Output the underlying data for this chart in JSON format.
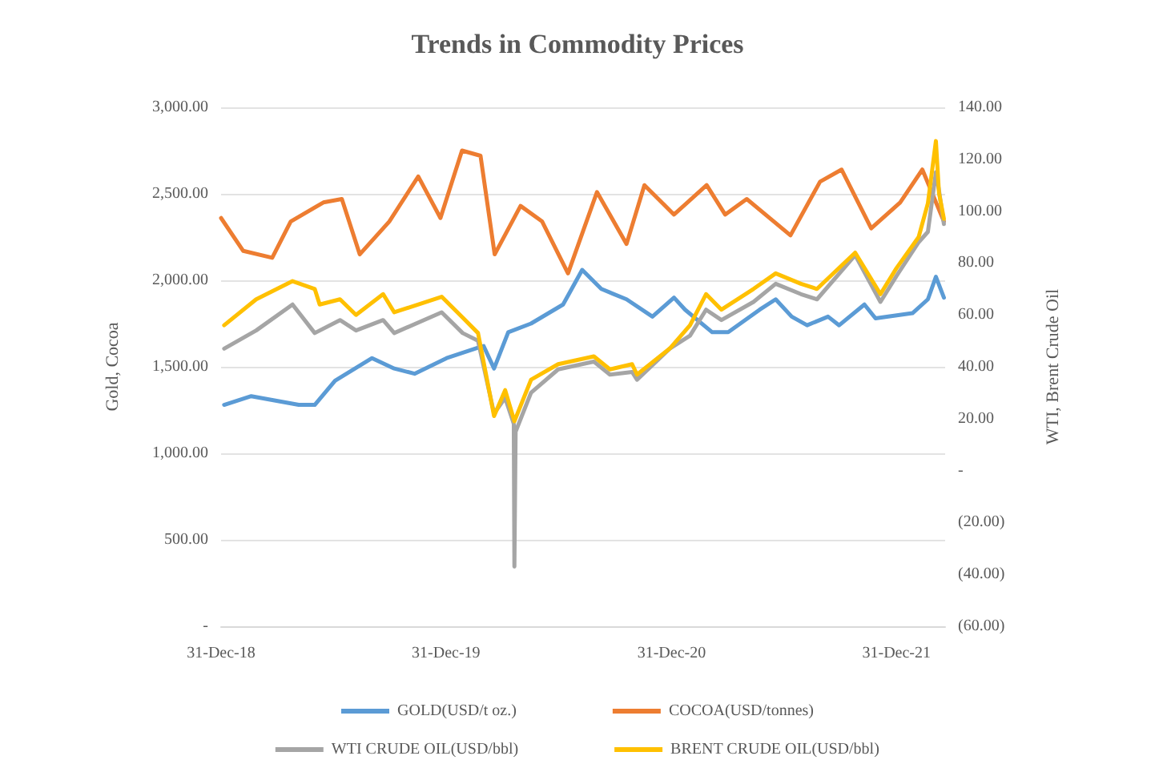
{
  "chart_data": {
    "type": "line",
    "title": "Trends in Commodity Prices",
    "ylabel": "Gold, Cocoa",
    "y2label": "WTI, Brent Crude Oil",
    "xlim": [
      "2018-12-31",
      "2022-03-20"
    ],
    "xticks": [
      {
        "value": "2018-12-31",
        "label": "31-Dec-18"
      },
      {
        "value": "2019-12-31",
        "label": "31-Dec-19"
      },
      {
        "value": "2020-12-31",
        "label": "31-Dec-20"
      },
      {
        "value": "2021-12-31",
        "label": "31-Dec-21"
      }
    ],
    "ylim": [
      0,
      3000
    ],
    "yticks": [
      {
        "value": 0,
        "label": "-"
      },
      {
        "value": 500,
        "label": "500.00"
      },
      {
        "value": 1000,
        "label": "1,000.00"
      },
      {
        "value": 1500,
        "label": "1,500.00"
      },
      {
        "value": 2000,
        "label": "2,000.00"
      },
      {
        "value": 2500,
        "label": "2,500.00"
      },
      {
        "value": 3000,
        "label": "3,000.00"
      }
    ],
    "y2lim": [
      -60,
      140
    ],
    "y2ticks": [
      {
        "value": -60,
        "label": "(60.00)"
      },
      {
        "value": -40,
        "label": "(40.00)"
      },
      {
        "value": -20,
        "label": "(20.00)"
      },
      {
        "value": 0,
        "label": "-"
      },
      {
        "value": 20,
        "label": "20.00"
      },
      {
        "value": 40,
        "label": "40.00"
      },
      {
        "value": 60,
        "label": "60.00"
      },
      {
        "value": 80,
        "label": "80.00"
      },
      {
        "value": 100,
        "label": "100.00"
      },
      {
        "value": 120,
        "label": "120.00"
      },
      {
        "value": 140,
        "label": "140.00"
      }
    ],
    "grid": "y",
    "legend": "bottom",
    "series": [
      {
        "name": "GOLD(USD/t oz.)",
        "color": "#5b9bd5",
        "x": [
          "2019-01-05",
          "2019-02-18",
          "2019-05-06",
          "2019-06-01",
          "2019-07-04",
          "2019-09-02",
          "2019-10-08",
          "2019-11-10",
          "2020-01-01",
          "2020-02-21",
          "2020-03-01",
          "2020-03-18",
          "2020-04-10",
          "2020-05-17",
          "2020-07-08",
          "2020-08-08",
          "2020-09-08",
          "2020-10-19",
          "2020-11-30",
          "2021-01-04",
          "2021-01-22",
          "2021-03-07",
          "2021-04-02",
          "2021-05-23",
          "2021-06-18",
          "2021-07-14",
          "2021-08-08",
          "2021-09-11",
          "2021-09-29",
          "2021-11-09",
          "2021-11-27",
          "2022-01-26",
          "2022-02-20",
          "2022-03-05",
          "2022-03-18"
        ],
        "values": [
          1280,
          1330,
          1280,
          1280,
          1420,
          1550,
          1490,
          1460,
          1550,
          1610,
          1620,
          1490,
          1700,
          1750,
          1860,
          2060,
          1950,
          1890,
          1790,
          1900,
          1830,
          1700,
          1700,
          1830,
          1890,
          1790,
          1740,
          1790,
          1740,
          1860,
          1780,
          1810,
          1890,
          2020,
          1900
        ]
      },
      {
        "name": "COCOA(USD/tonnes)",
        "color": "#ed7d31",
        "x": [
          "2018-12-31",
          "2019-02-05",
          "2019-03-24",
          "2019-04-23",
          "2019-06-15",
          "2019-07-15",
          "2019-08-13",
          "2019-09-30",
          "2019-11-16",
          "2019-12-22",
          "2020-01-26",
          "2020-02-25",
          "2020-03-19",
          "2020-04-30",
          "2020-06-04",
          "2020-07-16",
          "2020-09-01",
          "2020-10-19",
          "2020-11-17",
          "2021-01-04",
          "2021-02-26",
          "2021-03-28",
          "2021-05-02",
          "2021-07-12",
          "2021-08-29",
          "2021-10-03",
          "2021-11-20",
          "2022-01-06",
          "2022-02-11",
          "2022-03-18"
        ],
        "values": [
          2360,
          2170,
          2130,
          2340,
          2450,
          2470,
          2150,
          2340,
          2600,
          2360,
          2750,
          2720,
          2150,
          2430,
          2340,
          2040,
          2510,
          2210,
          2550,
          2380,
          2550,
          2380,
          2470,
          2260,
          2570,
          2640,
          2300,
          2450,
          2640,
          2340
        ]
      },
      {
        "name": "WTI CRUDE OIL(USD/bbl)",
        "color": "#a5a5a5",
        "axis": "y2",
        "x": [
          "2019-01-05",
          "2019-02-26",
          "2019-04-26",
          "2019-06-01",
          "2019-07-12",
          "2019-08-07",
          "2019-09-20",
          "2019-10-08",
          "2019-12-24",
          "2020-01-27",
          "2020-02-21",
          "2020-03-18",
          "2020-04-05",
          "2020-04-19",
          "2020-04-20",
          "2020-04-22",
          "2020-05-17",
          "2020-06-30",
          "2020-08-27",
          "2020-09-22",
          "2020-10-28",
          "2020-11-05",
          "2020-12-28",
          "2021-01-30",
          "2021-02-25",
          "2021-03-22",
          "2021-05-13",
          "2021-06-18",
          "2021-07-29",
          "2021-08-24",
          "2021-10-25",
          "2021-12-05",
          "2021-12-31",
          "2022-02-05",
          "2022-02-20",
          "2022-03-05",
          "2022-03-10",
          "2022-03-18"
        ],
        "values": [
          47,
          54,
          64,
          53,
          58,
          54,
          58,
          53,
          61,
          53,
          50,
          22,
          28,
          18,
          -37,
          15,
          30,
          39,
          42,
          37,
          38,
          35,
          47,
          52,
          62,
          58,
          65,
          72,
          68,
          66,
          83,
          65,
          75,
          88,
          92,
          115,
          108,
          95
        ]
      },
      {
        "name": "BRENT CRUDE OIL(USD/bbl)",
        "color": "#ffc000",
        "axis": "y2",
        "x": [
          "2019-01-05",
          "2019-02-26",
          "2019-04-26",
          "2019-06-01",
          "2019-06-09",
          "2019-07-12",
          "2019-08-07",
          "2019-09-20",
          "2019-10-08",
          "2019-12-24",
          "2020-01-27",
          "2020-02-21",
          "2020-03-18",
          "2020-04-05",
          "2020-04-20",
          "2020-05-17",
          "2020-06-30",
          "2020-08-27",
          "2020-09-22",
          "2020-10-28",
          "2020-11-05",
          "2020-12-28",
          "2021-01-30",
          "2021-02-25",
          "2021-03-22",
          "2021-05-13",
          "2021-06-18",
          "2021-07-29",
          "2021-08-24",
          "2021-10-25",
          "2021-12-05",
          "2021-12-31",
          "2022-02-05",
          "2022-02-20",
          "2022-03-05",
          "2022-03-10",
          "2022-03-18"
        ],
        "values": [
          56,
          66,
          73,
          70,
          64,
          66,
          60,
          68,
          61,
          67,
          59,
          53,
          21,
          31,
          19,
          35,
          41,
          44,
          39,
          41,
          37,
          47,
          56,
          68,
          62,
          70,
          76,
          72,
          70,
          84,
          68,
          78,
          90,
          103,
          127,
          107,
          97
        ]
      }
    ]
  }
}
